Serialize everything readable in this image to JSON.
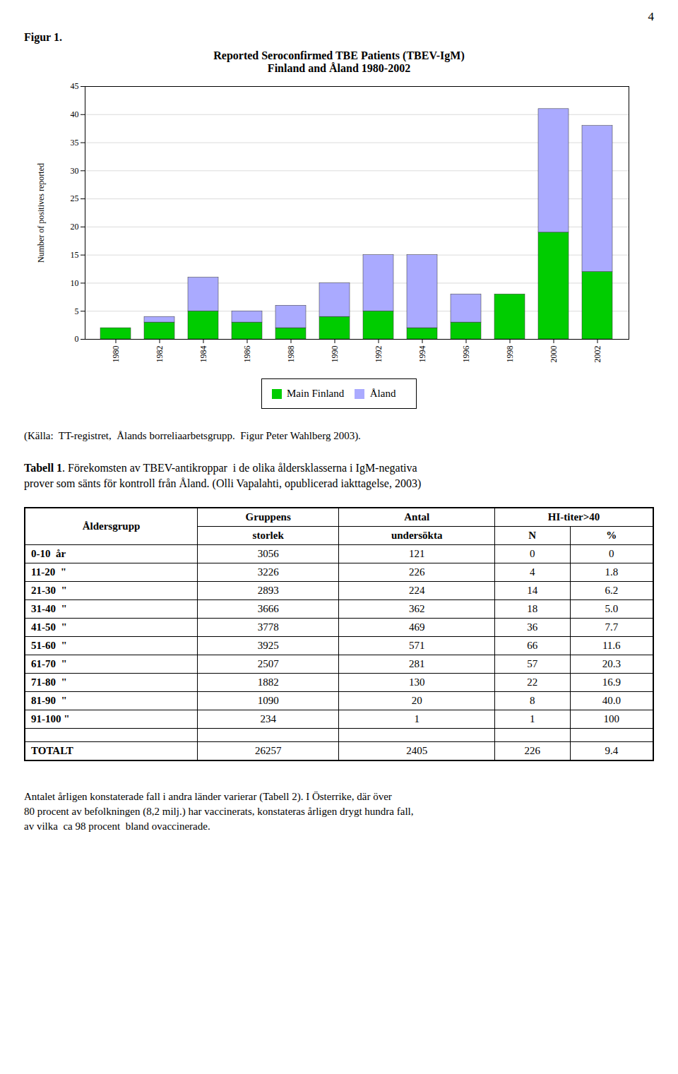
{
  "page_number": "4",
  "figure_label": "Figur 1.",
  "chart_data": {
    "type": "bar",
    "title": "Reported Seroconfirmed TBE Patients (TBEV-IgM)",
    "subtitle": "Finland and Åland 1980-2002",
    "ylabel": "Number of positives reported",
    "categories": [
      1980,
      1982,
      1984,
      1986,
      1988,
      1990,
      1992,
      1994,
      1996,
      1998,
      2000,
      2002
    ],
    "series": [
      {
        "name": "Main Finland",
        "color": "#00CC00",
        "values": [
          2,
          3,
          5,
          3,
          2,
          4,
          5,
          2,
          3,
          8,
          19,
          12
        ]
      },
      {
        "name": "Åland",
        "color": "#AAAAFF",
        "values": [
          0,
          1,
          6,
          2,
          4,
          6,
          10,
          13,
          5,
          0,
          22,
          26
        ]
      }
    ],
    "stacked": true,
    "ylim": [
      0,
      45
    ],
    "yticks": [
      0,
      5,
      10,
      15,
      20,
      25,
      30,
      35,
      40,
      45
    ],
    "grid": true,
    "legend": "bottom"
  },
  "source": "(Källa:  TT-registret,  Ålands borreliaarbetsgrupp.  Figur Peter Wahlberg 2003).",
  "table_label": "Tabell 1",
  "table_caption": ". Förekomsten av TBEV-antikroppar  i de olika åldersklasserna i IgM-negativa\nprover som sänts för kontroll från Åland. (Olli Vapalahti, opublicerad iakttagelse, 2003)",
  "table": {
    "header": [
      [
        "Åldersgrupp",
        "Gruppens",
        "Antal",
        "HI-titer>40"
      ],
      [
        "storlek",
        "undersökta",
        "N",
        "%"
      ]
    ],
    "rows": [
      [
        "0-10  år",
        "3056",
        "121",
        "0",
        "0"
      ],
      [
        "11-20  \"",
        "3226",
        "226",
        "4",
        "1.8"
      ],
      [
        "21-30  \"",
        "2893",
        "224",
        "14",
        "6.2"
      ],
      [
        "31-40  \"",
        "3666",
        "362",
        "18",
        "5.0"
      ],
      [
        "41-50  \"",
        "3778",
        "469",
        "36",
        "7.7"
      ],
      [
        "51-60  \"",
        "3925",
        "571",
        "66",
        "11.6"
      ],
      [
        "61-70  \"",
        "2507",
        "281",
        "57",
        "20.3"
      ],
      [
        "71-80  \"",
        "1882",
        "130",
        "22",
        "16.9"
      ],
      [
        "81-90  \"",
        "1090",
        "20",
        "8",
        "40.0"
      ],
      [
        "91-100 \"",
        "234",
        "1",
        "1",
        "100"
      ]
    ],
    "total": [
      "TOTALT",
      "26257",
      "2405",
      "226",
      "9.4"
    ]
  },
  "bottom_text": "Antalet årligen konstaterade fall i andra länder varierar (Tabell 2). I Österrike, där över\n80 procent av befolkningen (8,2 milj.) har vaccinerats, konstateras årligen drygt hundra fall,\nav vilka  ca 98 procent  bland ovaccinerade."
}
